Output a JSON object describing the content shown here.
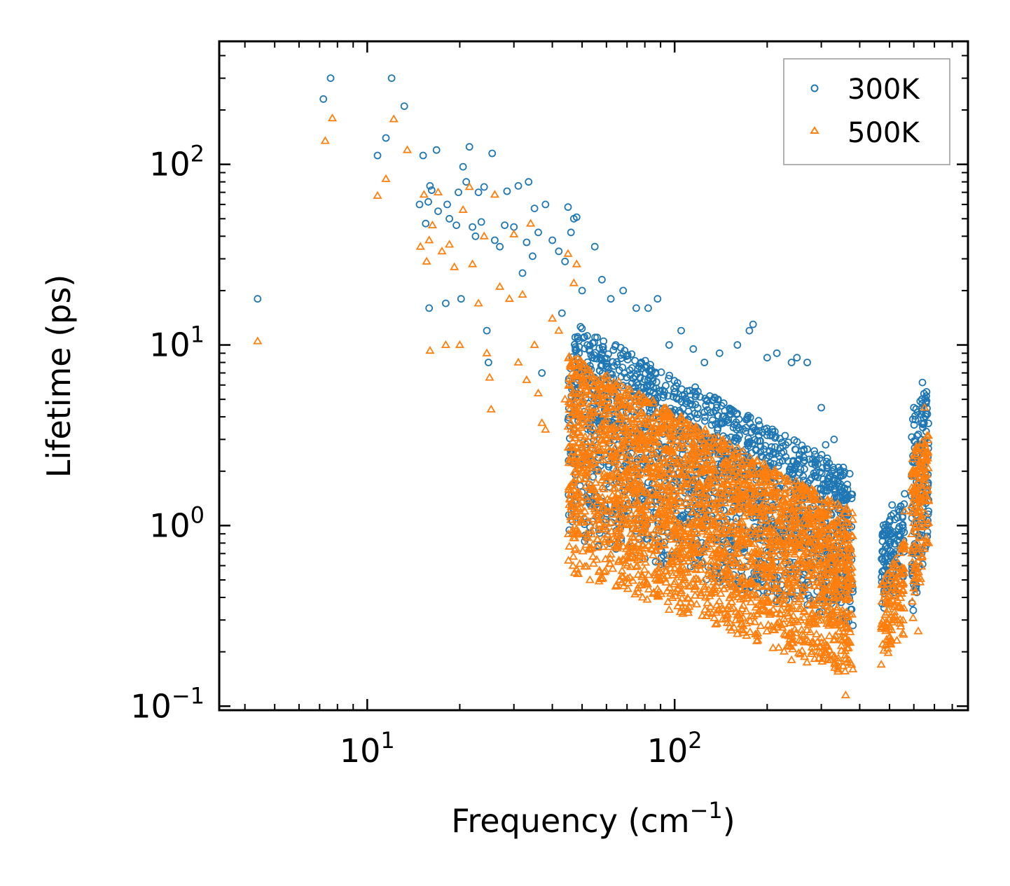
{
  "chart_data": {
    "type": "scatter",
    "title": "",
    "xlabel": "Frequency (cm",
    "xlabel_sup": "−1",
    "xlabel_end": ")",
    "ylabel": "Lifetime (ps)",
    "xscale": "log",
    "yscale": "log",
    "xlim": [
      3.3,
      900
    ],
    "ylim": [
      0.095,
      480
    ],
    "x_ticks": [
      {
        "value": 10,
        "base": "10",
        "exp": "1"
      },
      {
        "value": 100,
        "base": "10",
        "exp": "2"
      }
    ],
    "y_ticks": [
      {
        "value": 0.1,
        "base": "10",
        "exp": "−1"
      },
      {
        "value": 1,
        "base": "10",
        "exp": "0"
      },
      {
        "value": 10,
        "base": "10",
        "exp": "1"
      },
      {
        "value": 100,
        "base": "10",
        "exp": "2"
      }
    ],
    "legend_position": "top-right",
    "series": [
      {
        "name": "300K",
        "marker": "circle",
        "color": "#1f77b4",
        "points": [
          [
            4.4,
            18
          ],
          [
            7.2,
            230
          ],
          [
            7.6,
            300
          ],
          [
            10.8,
            112
          ],
          [
            11.5,
            140
          ],
          [
            12,
            300
          ],
          [
            13.2,
            210
          ],
          [
            14.8,
            60
          ],
          [
            15.2,
            112
          ],
          [
            15.5,
            47
          ],
          [
            15.8,
            62
          ],
          [
            15.9,
            16
          ],
          [
            16,
            76
          ],
          [
            16.2,
            72
          ],
          [
            16.8,
            120
          ],
          [
            17,
            55
          ],
          [
            18,
            17
          ],
          [
            18.2,
            60
          ],
          [
            18.5,
            50
          ],
          [
            19.5,
            46
          ],
          [
            19.8,
            70
          ],
          [
            20.2,
            18
          ],
          [
            20.5,
            97
          ],
          [
            21,
            80
          ],
          [
            21.5,
            125
          ],
          [
            22,
            45
          ],
          [
            22.5,
            40
          ],
          [
            23,
            70
          ],
          [
            23.5,
            48
          ],
          [
            24,
            75
          ],
          [
            24.5,
            12
          ],
          [
            24.8,
            8
          ],
          [
            25.5,
            115
          ],
          [
            26,
            38
          ],
          [
            27,
            35
          ],
          [
            28,
            46
          ],
          [
            28.5,
            71
          ],
          [
            30,
            45
          ],
          [
            31,
            76
          ],
          [
            32,
            25
          ],
          [
            33,
            37
          ],
          [
            33.5,
            80
          ],
          [
            34.5,
            31
          ],
          [
            35,
            57
          ],
          [
            36,
            42
          ],
          [
            37,
            7
          ],
          [
            38,
            60
          ],
          [
            40,
            38
          ],
          [
            42,
            33
          ],
          [
            43,
            15
          ],
          [
            44,
            29
          ],
          [
            45,
            58
          ],
          [
            46,
            42
          ],
          [
            47,
            50
          ],
          [
            48,
            51
          ],
          [
            50,
            20
          ],
          [
            52,
            10
          ],
          [
            55,
            35
          ],
          [
            58,
            23
          ],
          [
            62,
            18
          ],
          [
            68,
            20
          ],
          [
            75,
            16
          ],
          [
            82,
            16
          ],
          [
            88,
            18
          ],
          [
            96,
            10
          ],
          [
            105,
            12
          ],
          [
            115,
            9.5
          ],
          [
            125,
            8
          ],
          [
            140,
            9
          ],
          [
            160,
            10
          ],
          [
            175,
            12
          ],
          [
            180,
            13
          ],
          [
            200,
            8.5
          ],
          [
            215,
            9
          ],
          [
            240,
            8
          ],
          [
            250,
            8.5
          ],
          [
            270,
            8
          ],
          [
            300,
            4.5
          ],
          [
            310,
            2.8
          ],
          [
            330,
            3
          ],
          [
            355,
            1.5
          ],
          [
            365,
            0.5
          ],
          [
            380,
            0.28
          ],
          [
            480,
            0.35
          ],
          [
            510,
            1.3
          ],
          [
            540,
            1.2
          ],
          [
            560,
            1.5
          ],
          [
            600,
            4.5
          ],
          [
            640,
            6.2
          ],
          [
            660,
            5.5
          ],
          [
            670,
            1.2
          ]
        ]
      },
      {
        "name": "500K",
        "marker": "triangle",
        "color": "#ff7f0e",
        "points": [
          [
            4.4,
            10.5
          ],
          [
            7.3,
            135
          ],
          [
            7.7,
            180
          ],
          [
            10.8,
            67
          ],
          [
            11.5,
            83
          ],
          [
            12.2,
            178
          ],
          [
            13.5,
            120
          ],
          [
            14.9,
            35
          ],
          [
            15.3,
            68
          ],
          [
            15.6,
            29
          ],
          [
            15.9,
            38
          ],
          [
            16,
            9.3
          ],
          [
            16.3,
            46
          ],
          [
            17,
            70
          ],
          [
            17.5,
            33
          ],
          [
            18,
            10
          ],
          [
            18.5,
            36
          ],
          [
            19.2,
            27
          ],
          [
            20,
            10
          ],
          [
            20.5,
            56
          ],
          [
            21.5,
            75
          ],
          [
            22,
            28
          ],
          [
            23,
            17
          ],
          [
            24,
            40
          ],
          [
            24.5,
            9
          ],
          [
            25,
            6.6
          ],
          [
            25.3,
            4.4
          ],
          [
            26,
            68
          ],
          [
            27,
            21
          ],
          [
            29,
            18
          ],
          [
            30,
            41
          ],
          [
            31,
            8
          ],
          [
            32,
            19
          ],
          [
            33,
            6.4
          ],
          [
            34,
            47
          ],
          [
            35,
            10
          ],
          [
            36,
            5.4
          ],
          [
            37,
            3.7
          ],
          [
            38,
            3.4
          ],
          [
            40,
            14
          ],
          [
            42,
            12
          ],
          [
            44,
            5
          ],
          [
            45,
            32
          ],
          [
            47,
            22
          ],
          [
            48,
            28
          ],
          [
            50,
            2.8
          ],
          [
            52,
            2.5
          ],
          [
            55,
            6
          ],
          [
            60,
            3
          ],
          [
            65,
            0.9
          ],
          [
            72,
            0.8
          ],
          [
            80,
            0.75
          ],
          [
            90,
            0.5
          ],
          [
            100,
            0.7
          ],
          [
            110,
            0.55
          ],
          [
            120,
            0.6
          ],
          [
            135,
            0.45
          ],
          [
            150,
            0.36
          ],
          [
            160,
            0.32
          ],
          [
            180,
            0.6
          ],
          [
            200,
            0.55
          ],
          [
            230,
            0.55
          ],
          [
            240,
            0.18
          ],
          [
            260,
            0.25
          ],
          [
            280,
            0.2
          ],
          [
            300,
            0.24
          ],
          [
            320,
            0.18
          ],
          [
            340,
            0.16
          ],
          [
            360,
            0.115
          ],
          [
            380,
            0.16
          ],
          [
            470,
            0.17
          ],
          [
            500,
            0.24
          ],
          [
            530,
            0.3
          ],
          [
            560,
            1.2
          ],
          [
            600,
            0.45
          ],
          [
            620,
            0.26
          ],
          [
            650,
            4.5
          ],
          [
            670,
            0.8
          ]
        ]
      }
    ],
    "dense_regions": [
      {
        "series": "300K",
        "x_range": [
          45,
          380
        ],
        "y_lo_start": 0.85,
        "y_lo_end": 0.28,
        "y_hi_start": 14,
        "y_hi_end": 2.0,
        "count": 1800
      },
      {
        "series": "300K",
        "x_range": [
          470,
          560
        ],
        "y_lo_start": 0.3,
        "y_lo_end": 0.5,
        "y_hi_start": 1.0,
        "y_hi_end": 1.4,
        "count": 120
      },
      {
        "series": "300K",
        "x_range": [
          590,
          670
        ],
        "y_lo_start": 0.3,
        "y_lo_end": 0.8,
        "y_hi_start": 4.0,
        "y_hi_end": 6.0,
        "count": 150
      },
      {
        "series": "500K",
        "x_range": [
          45,
          380
        ],
        "y_lo_start": 0.55,
        "y_lo_end": 0.14,
        "y_hi_start": 9,
        "y_hi_end": 1.2,
        "count": 2600
      },
      {
        "series": "500K",
        "x_range": [
          470,
          560
        ],
        "y_lo_start": 0.17,
        "y_lo_end": 0.25,
        "y_hi_start": 0.5,
        "y_hi_end": 0.9,
        "count": 120
      },
      {
        "series": "500K",
        "x_range": [
          590,
          670
        ],
        "y_lo_start": 0.25,
        "y_lo_end": 0.7,
        "y_hi_start": 2.5,
        "y_hi_end": 3.8,
        "count": 150
      }
    ]
  }
}
